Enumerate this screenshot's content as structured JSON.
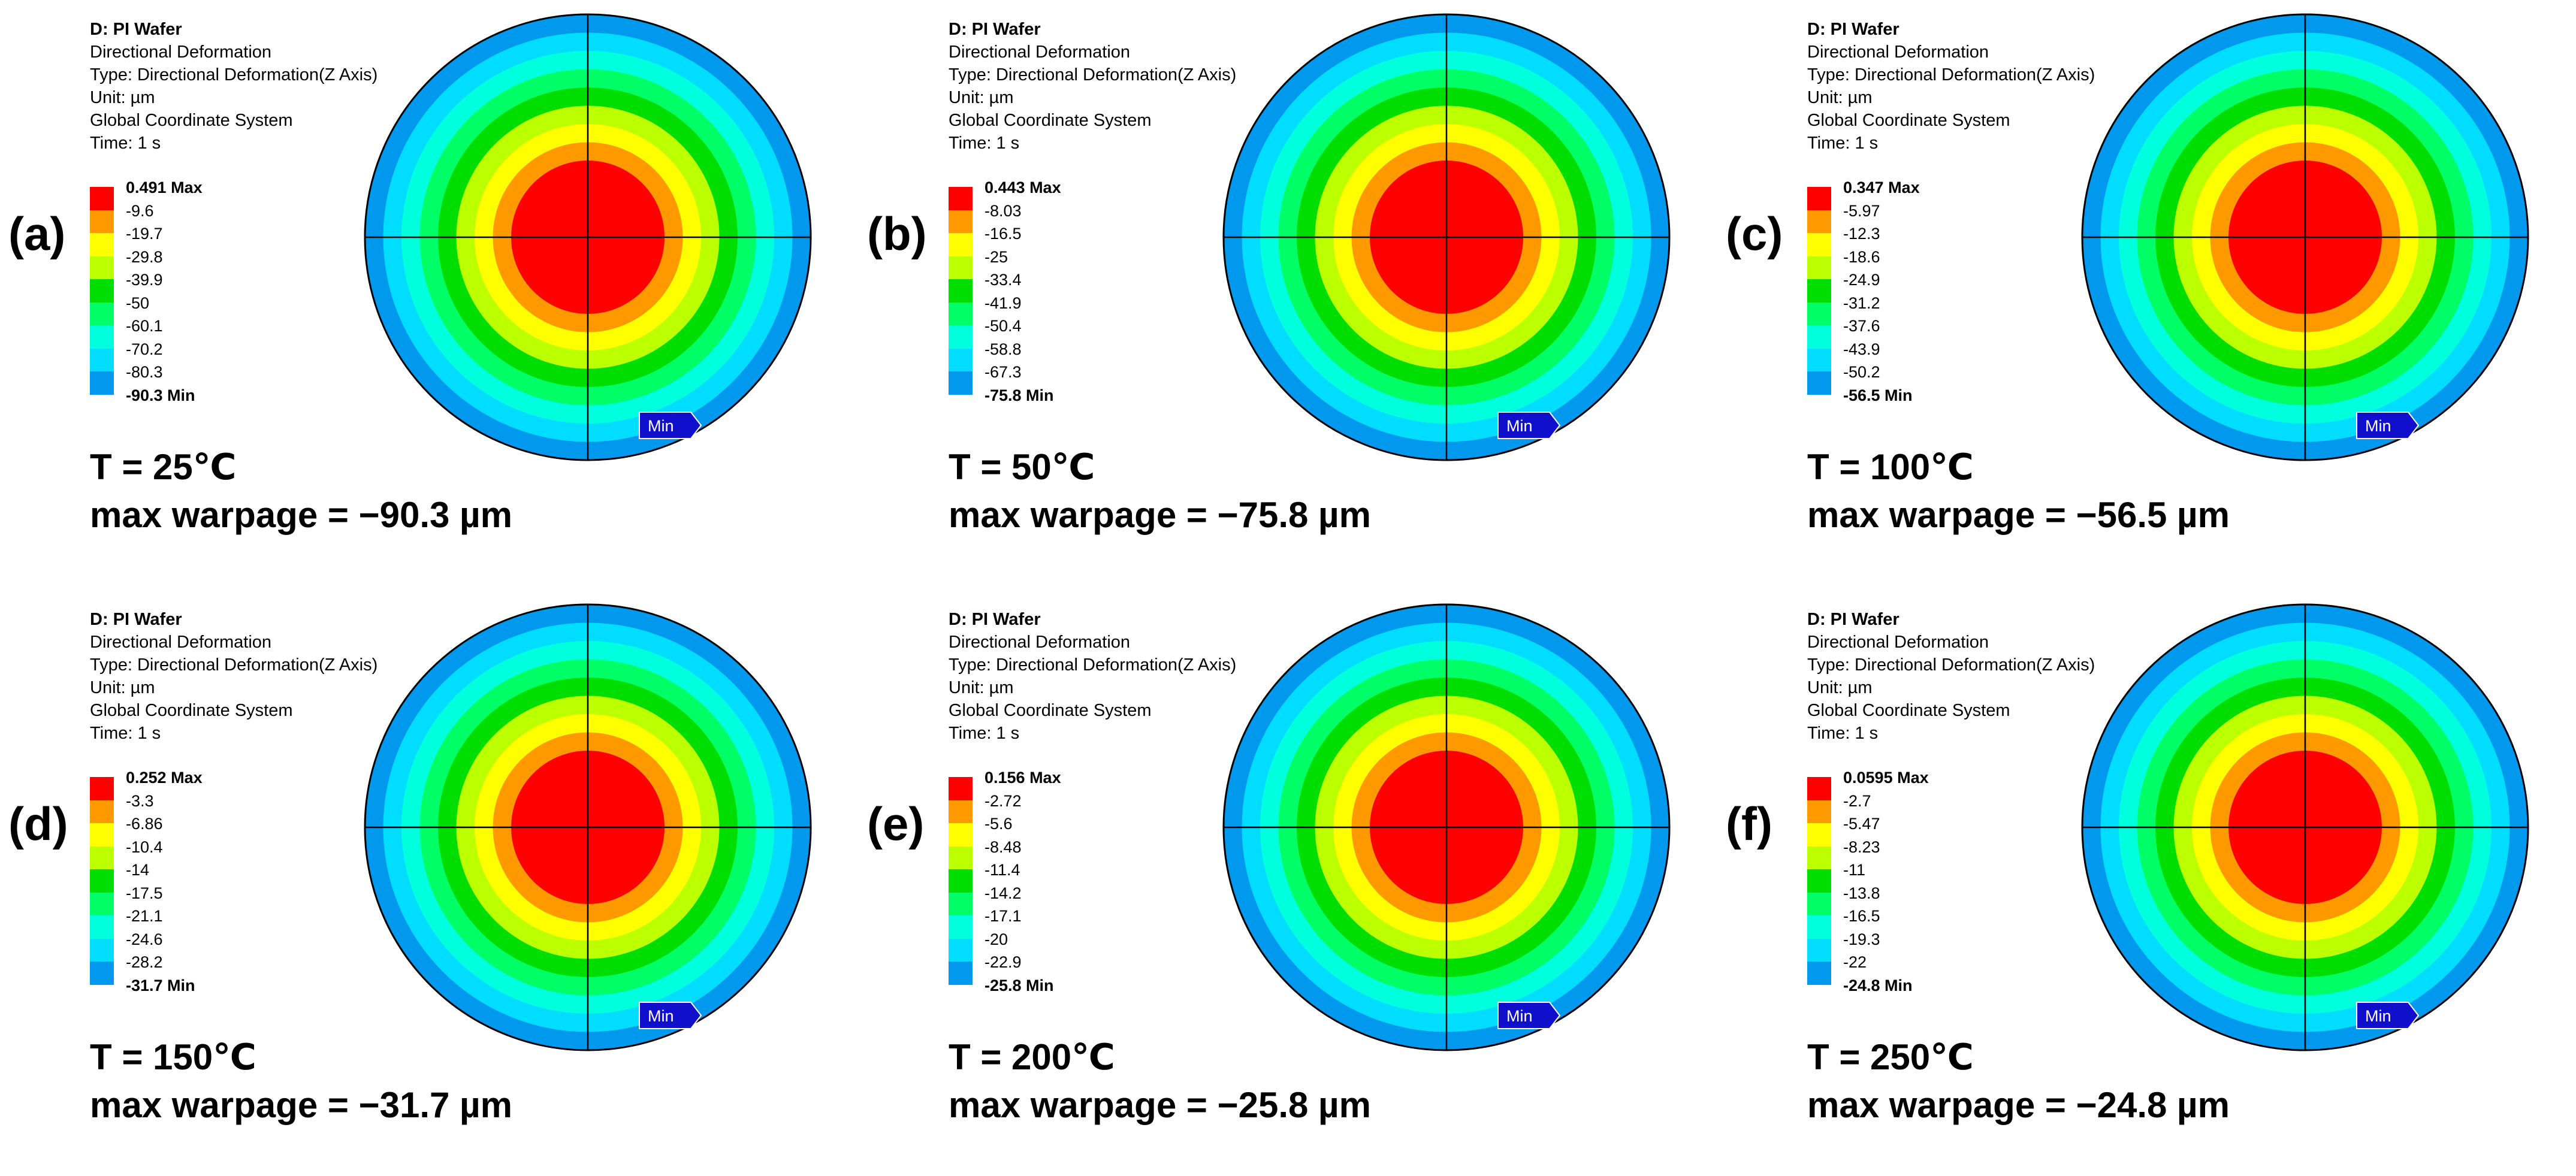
{
  "colors": {
    "scale": [
      "#ff0000",
      "#ff9900",
      "#ffff00",
      "#bbff00",
      "#00dd00",
      "#00ff66",
      "#00ffdd",
      "#00ddff",
      "#0099ee",
      "#0000dd"
    ],
    "min_badge": "#1010cc",
    "crosshair": "#000000"
  },
  "icons": {
    "min_marker": "min-arrow-icon"
  },
  "panels": [
    {
      "letter": "(a)",
      "title": "D: PI Wafer",
      "result": "Directional Deformation",
      "type": "Type: Directional Deformation(Z Axis)",
      "unit": "Unit: µm",
      "coord": "Global Coordinate System",
      "time": "Time: 1 s",
      "legend": [
        "0.491 Max",
        "-9.6",
        "-19.7",
        "-29.8",
        "-39.9",
        "-50",
        "-60.1",
        "-70.2",
        "-80.3",
        "-90.3 Min"
      ],
      "min_label": "Min",
      "temp": "T = 25℃",
      "warpage": "max warpage = −90.3 µm"
    },
    {
      "letter": "(b)",
      "title": "D: PI Wafer",
      "result": "Directional Deformation",
      "type": "Type: Directional Deformation(Z Axis)",
      "unit": "Unit: µm",
      "coord": "Global Coordinate System",
      "time": "Time: 1 s",
      "legend": [
        "0.443 Max",
        "-8.03",
        "-16.5",
        "-25",
        "-33.4",
        "-41.9",
        "-50.4",
        "-58.8",
        "-67.3",
        "-75.8 Min"
      ],
      "min_label": "Min",
      "temp": "T = 50℃",
      "warpage": "max warpage = −75.8 µm"
    },
    {
      "letter": "(c)",
      "title": "D: PI Wafer",
      "result": "Directional Deformation",
      "type": "Type: Directional Deformation(Z Axis)",
      "unit": "Unit: µm",
      "coord": "Global Coordinate System",
      "time": "Time: 1 s",
      "legend": [
        "0.347 Max",
        "-5.97",
        "-12.3",
        "-18.6",
        "-24.9",
        "-31.2",
        "-37.6",
        "-43.9",
        "-50.2",
        "-56.5 Min"
      ],
      "min_label": "Min",
      "temp": "T = 100℃",
      "warpage": "max warpage = −56.5 µm"
    },
    {
      "letter": "(d)",
      "title": "D: PI Wafer",
      "result": "Directional Deformation",
      "type": "Type: Directional Deformation(Z Axis)",
      "unit": "Unit: µm",
      "coord": "Global Coordinate System",
      "time": "Time: 1 s",
      "legend": [
        "0.252 Max",
        "-3.3",
        "-6.86",
        "-10.4",
        "-14",
        "-17.5",
        "-21.1",
        "-24.6",
        "-28.2",
        "-31.7 Min"
      ],
      "min_label": "Min",
      "temp": "T = 150℃",
      "warpage": "max warpage = −31.7 µm"
    },
    {
      "letter": "(e)",
      "title": "D: PI Wafer",
      "result": "Directional Deformation",
      "type": "Type: Directional Deformation(Z Axis)",
      "unit": "Unit: µm",
      "coord": "Global Coordinate System",
      "time": "Time: 1 s",
      "legend": [
        "0.156 Max",
        "-2.72",
        "-5.6",
        "-8.48",
        "-11.4",
        "-14.2",
        "-17.1",
        "-20",
        "-22.9",
        "-25.8 Min"
      ],
      "min_label": "Min",
      "temp": "T = 200℃",
      "warpage": "max warpage = −25.8 µm"
    },
    {
      "letter": "(f)",
      "title": "D: PI Wafer",
      "result": "Directional Deformation",
      "type": "Type: Directional Deformation(Z Axis)",
      "unit": "Unit: µm",
      "coord": "Global Coordinate System",
      "time": "Time: 1 s",
      "legend": [
        "0.0595 Max",
        "-2.7",
        "-5.47",
        "-8.23",
        "-11",
        "-13.8",
        "-16.5",
        "-19.3",
        "-22",
        "-24.8 Min"
      ],
      "min_label": "Min",
      "temp": "T = 250℃",
      "warpage": "max warpage = −24.8 µm"
    }
  ]
}
